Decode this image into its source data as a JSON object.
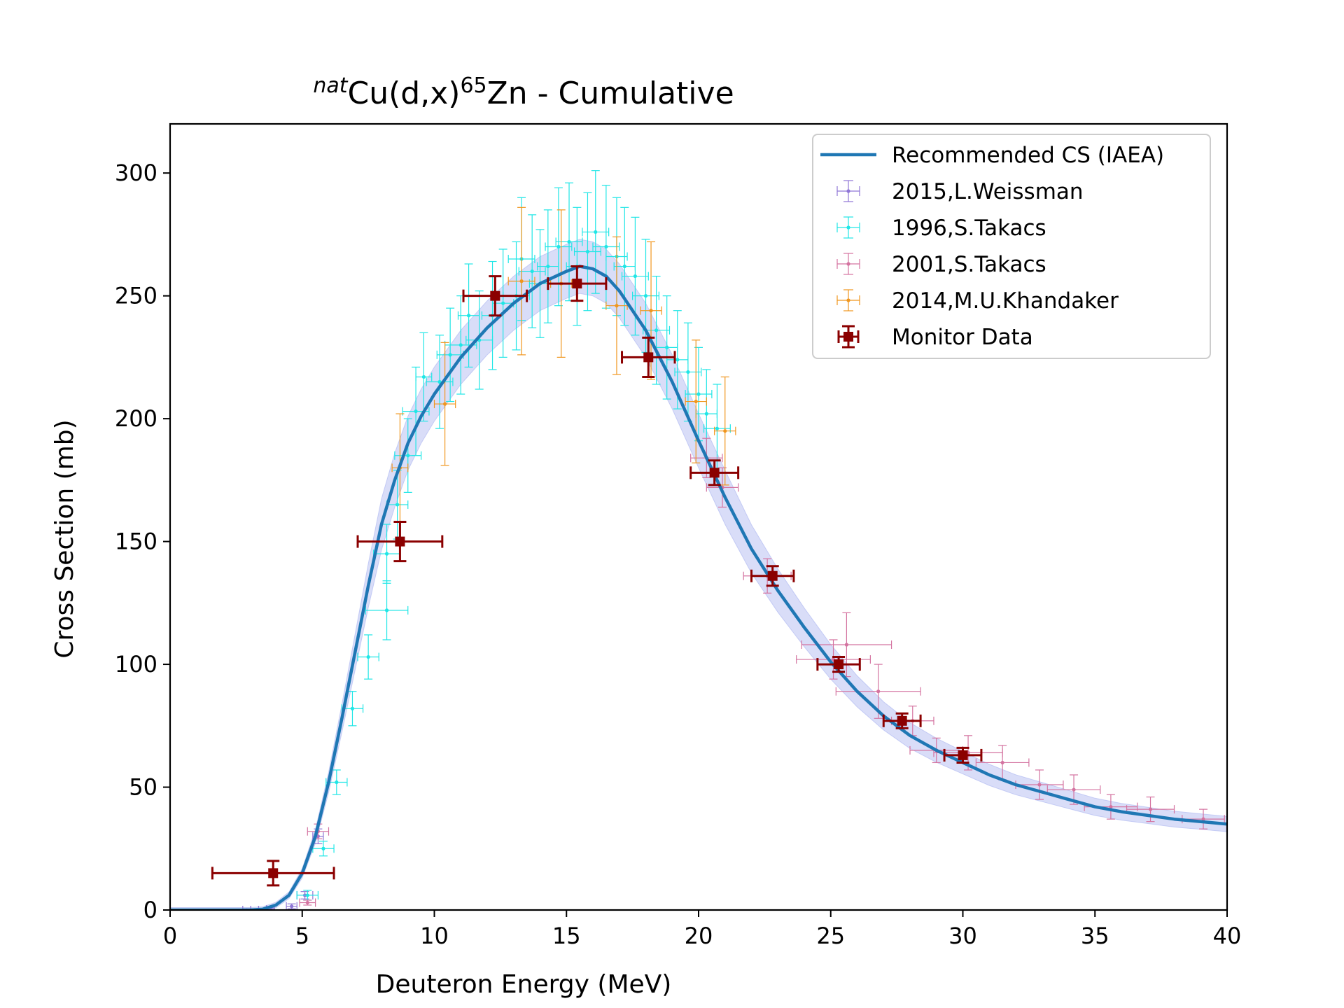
{
  "chart_data": {
    "type": "scatter",
    "title": {
      "prefix_sup": "nat",
      "base": "Cu(d,x)",
      "mass_sup": "65",
      "element": "Zn",
      "suffix": " - Cumulative"
    },
    "xlabel": "Deuteron Energy (MeV)",
    "ylabel": "Cross Section (mb)",
    "xlim": [
      0,
      40
    ],
    "ylim": [
      0,
      320
    ],
    "xticks": [
      0,
      5,
      10,
      15,
      20,
      25,
      30,
      35,
      40
    ],
    "yticks": [
      0,
      50,
      100,
      150,
      200,
      250,
      300
    ],
    "grid": false,
    "legend_position": "top-right",
    "colors": {
      "recommended": "#1f77b4",
      "band": "#aab4f0",
      "weissman": "#8f76d6",
      "takacs1996": "#20e6e6",
      "takacs2001": "#d473a0",
      "khandaker": "#f0961e",
      "monitor": "#8b0000"
    },
    "recommended": {
      "name": "Recommended CS (IAEA)",
      "x": [
        0,
        3,
        3.5,
        4,
        4.5,
        5,
        5.5,
        6,
        6.5,
        7,
        7.5,
        8,
        8.5,
        9,
        9.5,
        10,
        11,
        12,
        13,
        14,
        15,
        15.5,
        16,
        16.5,
        17,
        18,
        19,
        20,
        21,
        22,
        23,
        24,
        25,
        26,
        27,
        28,
        29,
        30,
        31,
        32,
        33,
        34,
        35,
        36,
        37,
        38,
        39,
        40
      ],
      "y": [
        0,
        0,
        0.3,
        2,
        6,
        15,
        30,
        52,
        78,
        105,
        132,
        157,
        175,
        190,
        201,
        210,
        225,
        237,
        247,
        255,
        260,
        262,
        261,
        258,
        252,
        236,
        215,
        191,
        168,
        147,
        130,
        115,
        101,
        89,
        79,
        71,
        65,
        60,
        55,
        51,
        48,
        45,
        42,
        40,
        38.5,
        37,
        36,
        35
      ],
      "band": 11
    },
    "series": [
      {
        "name": "2015,L.Weissman",
        "color_key": "weissman",
        "points": [
          [
            2.9,
            0,
            0.15,
            0.5
          ],
          [
            3.2,
            0,
            0.15,
            0.5
          ],
          [
            3.5,
            0,
            0.15,
            0.5
          ],
          [
            3.8,
            0.3,
            0.15,
            0.5
          ],
          [
            4.6,
            1.5,
            0.2,
            1
          ],
          [
            5.1,
            6,
            0.3,
            1.5
          ],
          [
            5.6,
            30,
            0.2,
            3
          ]
        ]
      },
      {
        "name": "1996,S.Takacs",
        "color_key": "takacs1996",
        "points": [
          [
            5.2,
            6,
            0.4,
            2
          ],
          [
            5.8,
            25,
            0.4,
            3
          ],
          [
            6.3,
            52,
            0.4,
            5
          ],
          [
            6.9,
            82,
            0.4,
            7
          ],
          [
            7.5,
            103,
            0.4,
            9
          ],
          [
            8.2,
            145,
            0.5,
            12
          ],
          [
            8.2,
            122,
            0.8,
            12
          ],
          [
            8.6,
            165,
            0.4,
            14
          ],
          [
            9.0,
            185,
            0.5,
            15
          ],
          [
            9.3,
            203,
            0.5,
            18
          ],
          [
            9.6,
            217,
            0.3,
            18
          ],
          [
            10.2,
            215,
            0.5,
            19
          ],
          [
            10.6,
            226,
            0.5,
            19
          ],
          [
            11.0,
            230,
            0.6,
            20
          ],
          [
            11.3,
            242,
            0.4,
            21
          ],
          [
            11.7,
            232,
            0.5,
            20
          ],
          [
            12.2,
            242,
            0.4,
            22
          ],
          [
            12.6,
            247,
            0.4,
            22
          ],
          [
            13.1,
            250,
            0.5,
            22
          ],
          [
            13.3,
            265,
            0.5,
            25
          ],
          [
            13.7,
            260,
            0.5,
            23
          ],
          [
            14.0,
            255,
            0.4,
            22
          ],
          [
            14.3,
            262,
            0.4,
            23
          ],
          [
            14.7,
            270,
            0.5,
            24
          ],
          [
            15.1,
            272,
            0.5,
            24
          ],
          [
            15.4,
            262,
            0.4,
            24
          ],
          [
            15.8,
            268,
            0.5,
            24
          ],
          [
            16.1,
            276,
            0.5,
            25
          ],
          [
            16.5,
            270,
            0.5,
            25
          ],
          [
            16.9,
            266,
            0.4,
            24
          ],
          [
            17.2,
            262,
            0.4,
            24
          ],
          [
            17.6,
            258,
            0.5,
            24
          ],
          [
            18.0,
            250,
            0.5,
            23
          ],
          [
            18.4,
            236,
            0.5,
            22
          ],
          [
            18.8,
            229,
            0.4,
            21
          ],
          [
            19.2,
            224,
            0.4,
            20
          ],
          [
            19.6,
            219,
            0.5,
            20
          ],
          [
            20.0,
            210,
            0.5,
            19
          ],
          [
            20.3,
            202,
            0.4,
            18
          ],
          [
            20.7,
            196,
            0.5,
            18
          ]
        ]
      },
      {
        "name": "2001,S.Takacs",
        "color_key": "takacs2001",
        "points": [
          [
            5.2,
            3,
            0.3,
            1
          ],
          [
            5.6,
            32,
            0.4,
            3
          ],
          [
            20.3,
            184,
            0.6,
            8
          ],
          [
            20.9,
            172,
            0.6,
            8
          ],
          [
            22.6,
            136,
            0.9,
            7
          ],
          [
            25.1,
            102,
            1.4,
            8
          ],
          [
            25.6,
            108,
            1.7,
            13
          ],
          [
            26.8,
            89,
            1.6,
            11
          ],
          [
            28.1,
            77,
            0.8,
            6
          ],
          [
            29.0,
            65,
            1.0,
            5
          ],
          [
            30.2,
            64,
            1.3,
            7
          ],
          [
            31.5,
            60,
            1.0,
            7
          ],
          [
            32.9,
            51,
            0.9,
            6
          ],
          [
            34.2,
            49,
            1.0,
            6
          ],
          [
            35.6,
            42,
            1.0,
            5
          ],
          [
            37.1,
            41,
            0.9,
            5
          ],
          [
            39.1,
            37,
            0.8,
            4
          ]
        ]
      },
      {
        "name": "2014,M.U.Khandaker",
        "color_key": "khandaker",
        "points": [
          [
            8.7,
            180,
            0.3,
            22
          ],
          [
            10.4,
            206,
            0.4,
            25
          ],
          [
            13.3,
            256,
            0.5,
            30
          ],
          [
            14.8,
            255,
            0.4,
            30
          ],
          [
            16.9,
            246,
            0.4,
            28
          ],
          [
            18.2,
            244,
            0.4,
            28
          ],
          [
            19.9,
            207,
            0.4,
            25
          ],
          [
            21.0,
            195,
            0.4,
            22
          ]
        ]
      },
      {
        "name": "Monitor Data",
        "color_key": "monitor",
        "points": [
          [
            3.9,
            15,
            2.3,
            5
          ],
          [
            8.7,
            150,
            1.6,
            8
          ],
          [
            12.3,
            250,
            1.2,
            8
          ],
          [
            15.4,
            255,
            1.1,
            7
          ],
          [
            18.1,
            225,
            1.0,
            8
          ],
          [
            20.6,
            178,
            0.9,
            5
          ],
          [
            22.8,
            136,
            0.8,
            4
          ],
          [
            25.3,
            100,
            0.8,
            3
          ],
          [
            27.7,
            77,
            0.7,
            3
          ],
          [
            30.0,
            63,
            0.7,
            3
          ]
        ]
      }
    ]
  }
}
